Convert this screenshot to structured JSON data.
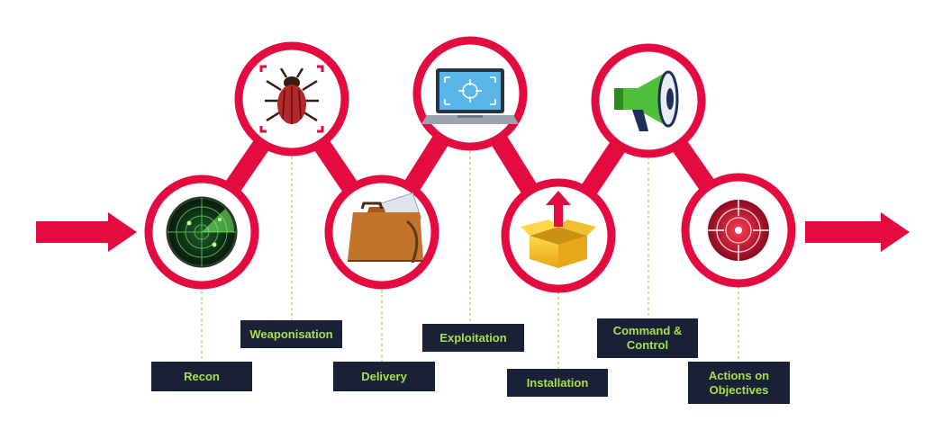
{
  "colors": {
    "accent": "#e30b3f",
    "label_bg": "#1a2035",
    "label_text": "#a8e04a",
    "connector": "#9fd54a"
  },
  "stages": [
    {
      "label": "Recon",
      "icon": "radar-icon"
    },
    {
      "label": "Weaponisation",
      "icon": "bug-icon"
    },
    {
      "label": "Delivery",
      "icon": "briefcase-icon"
    },
    {
      "label": "Exploitation",
      "icon": "laptop-target-icon"
    },
    {
      "label": "Installation",
      "icon": "box-upload-icon"
    },
    {
      "label": "Command &\nControl",
      "icon": "megaphone-icon"
    },
    {
      "label": "Actions on\nObjectives",
      "icon": "target-icon"
    }
  ]
}
